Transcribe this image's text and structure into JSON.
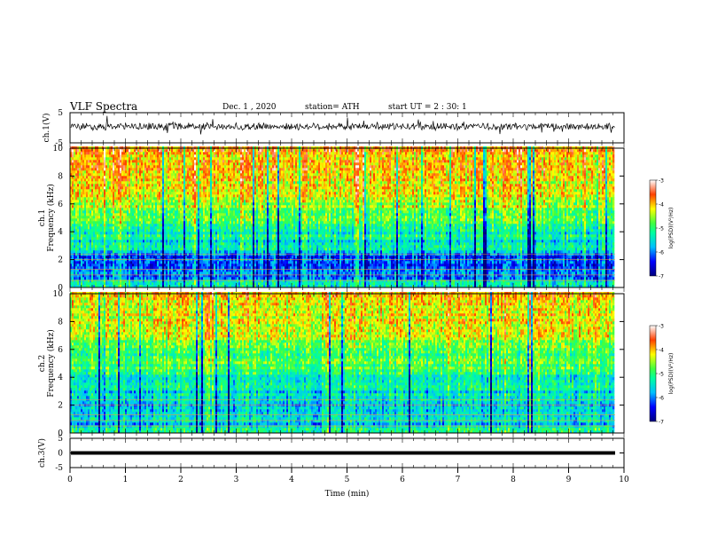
{
  "header": {
    "title": "VLF Spectra",
    "date": "Dec. 1 , 2020",
    "station": "station= ATH",
    "start_ut": "start UT = 2 : 30: 1"
  },
  "chart_data": [
    {
      "type": "line",
      "ylabel": "ch.1(V)",
      "ylim": [
        -5,
        5
      ],
      "yticks": [
        "5",
        "-5"
      ],
      "xlim": [
        0,
        10
      ]
    },
    {
      "type": "heatmap",
      "ylabel": "ch.1 Frequency (kHz)",
      "ylim": [
        0,
        10
      ],
      "yticks": [
        "0",
        "2",
        "4",
        "6",
        "8",
        "10"
      ],
      "xlim": [
        0,
        10
      ],
      "colorbar": {
        "label": "log(PSD)(V²/Hz)",
        "range": [
          -7,
          -3
        ],
        "ticks": [
          "-3",
          "-4",
          "-5",
          "-6",
          "-7"
        ]
      }
    },
    {
      "type": "heatmap",
      "ylabel": "ch.2 Frequency (kHz)",
      "ylim": [
        0,
        10
      ],
      "yticks": [
        "0",
        "2",
        "4",
        "6",
        "8",
        "10"
      ],
      "xlim": [
        0,
        10
      ],
      "colorbar": {
        "label": "log(PSD)(V²/Hz)",
        "range": [
          -7,
          -3
        ],
        "ticks": [
          "-3",
          "-4",
          "-5",
          "-6",
          "-7"
        ]
      }
    },
    {
      "type": "line",
      "ylabel": "ch.3(V)",
      "ylim": [
        -5,
        5
      ],
      "yticks": [
        "5",
        "0",
        "-5"
      ],
      "xlim": [
        0,
        10
      ],
      "xlabel": "Time (min)",
      "xticks": [
        "0",
        "1",
        "2",
        "3",
        "4",
        "5",
        "6",
        "7",
        "8",
        "9",
        "10"
      ]
    }
  ]
}
